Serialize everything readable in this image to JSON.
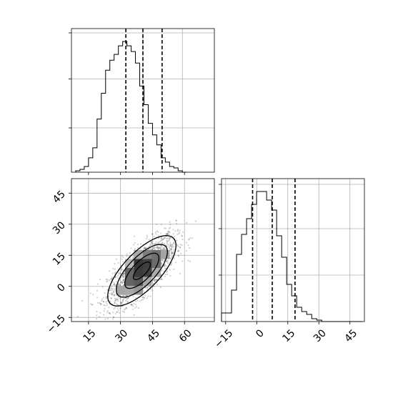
{
  "chart_data": [
    {
      "panel": "x-marginal",
      "type": "histogram",
      "title": "",
      "xlabel": "",
      "ylabel": "",
      "xlim": [
        7,
        74
      ],
      "ylim": [
        0,
        100
      ],
      "grid": true,
      "bins": {
        "start": 9,
        "width": 2,
        "counts": [
          1,
          2,
          4,
          10,
          17,
          37,
          55,
          71,
          78,
          82,
          88,
          91,
          88,
          84,
          76,
          60,
          47,
          34,
          26,
          19,
          10,
          7,
          4,
          3,
          1,
          0
        ]
      },
      "quantile_lines": [
        32.5,
        40.5,
        49.5
      ],
      "tick_labels": [
        "",
        "",
        ""
      ]
    },
    {
      "panel": "y-marginal",
      "type": "histogram",
      "title": "",
      "xlabel": "",
      "ylabel": "",
      "xlim": [
        -17,
        52
      ],
      "ylim": [
        0,
        100
      ],
      "grid": true,
      "bins": {
        "start": -17,
        "width": 2.42,
        "counts": [
          6,
          6,
          22,
          47,
          61,
          72,
          82,
          91,
          91,
          85,
          78,
          60,
          45,
          26,
          18,
          10,
          7,
          5,
          2,
          1,
          0,
          0,
          0,
          0,
          0,
          0,
          0,
          0
        ]
      },
      "quantile_lines": [
        -2,
        7.5,
        18.5
      ],
      "x_tick_values": [
        -15,
        0,
        15,
        30,
        45
      ],
      "x_tick_labels": [
        "−15",
        "0",
        "15",
        "30",
        "45"
      ],
      "y_tick_labels": [
        "",
        "",
        ""
      ]
    },
    {
      "panel": "joint",
      "type": "scatter+contour",
      "title": "",
      "xlabel": "",
      "ylabel": "",
      "xlim": [
        7,
        74
      ],
      "ylim": [
        -17,
        52
      ],
      "grid": true,
      "distribution": {
        "mean_x": 40,
        "mean_y": 7.5,
        "sd_x": 8,
        "sd_y": 8.5,
        "correlation": 0.72,
        "n_points": 1800
      },
      "contour_levels_sigma": [
        0.5,
        1.0,
        1.5,
        2.0
      ],
      "x_tick_values": [
        15,
        30,
        45,
        60
      ],
      "x_tick_labels": [
        "15",
        "30",
        "45",
        "60"
      ],
      "y_tick_values": [
        -15,
        0,
        15,
        30,
        45
      ],
      "y_tick_labels": [
        "−15",
        "0",
        "15",
        "30",
        "45"
      ]
    }
  ]
}
